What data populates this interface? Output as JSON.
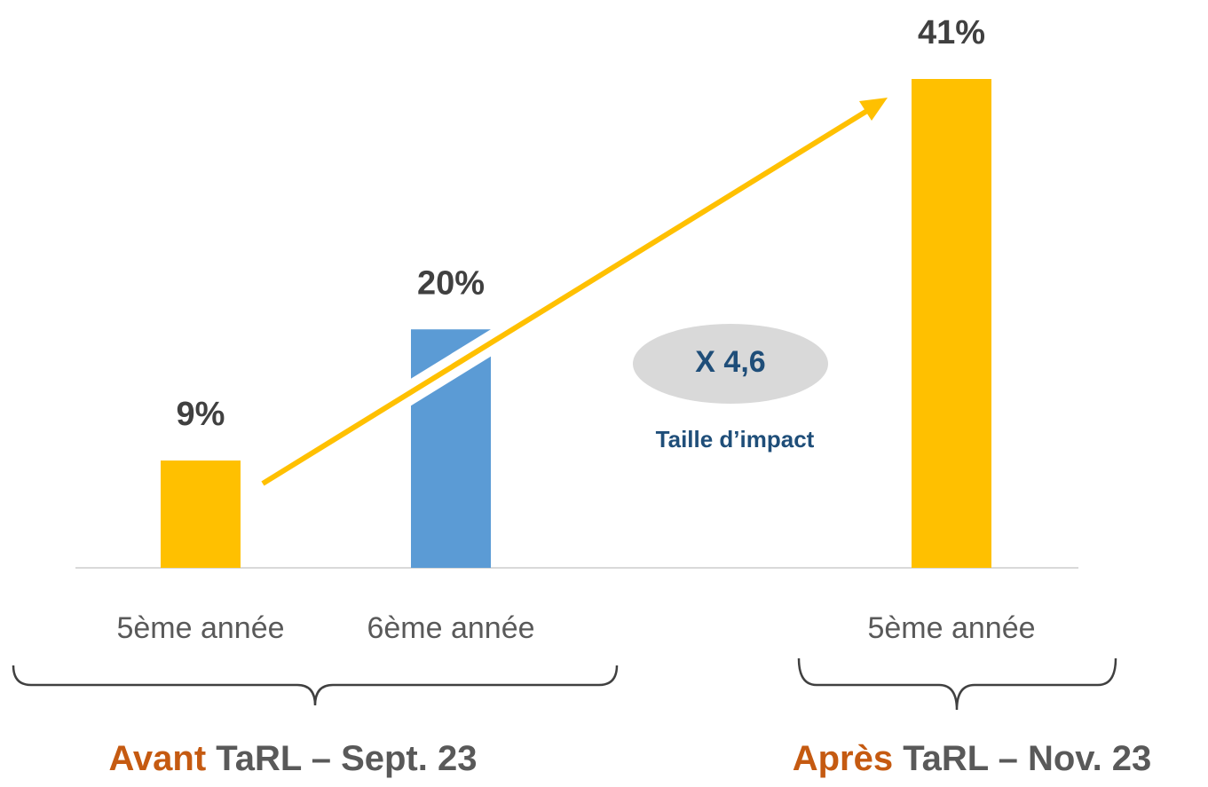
{
  "chart_data": {
    "type": "bar",
    "categories": [
      "5ème année",
      "6ème année",
      null,
      "5ème année"
    ],
    "values": [
      9,
      20,
      null,
      41
    ],
    "value_labels": [
      "9%",
      "20%",
      null,
      "41%"
    ],
    "colors": [
      "#ffc000",
      "#5b9bd5",
      null,
      "#ffc000"
    ],
    "annotations": {
      "factor": "X 4,6",
      "factor_caption": "Taille d’impact"
    },
    "groups": [
      {
        "highlight": "Avant",
        "text": " TaRL – Sept. 23"
      },
      {
        "highlight": "Après",
        "text": " TaRL – Nov. 23"
      }
    ]
  }
}
